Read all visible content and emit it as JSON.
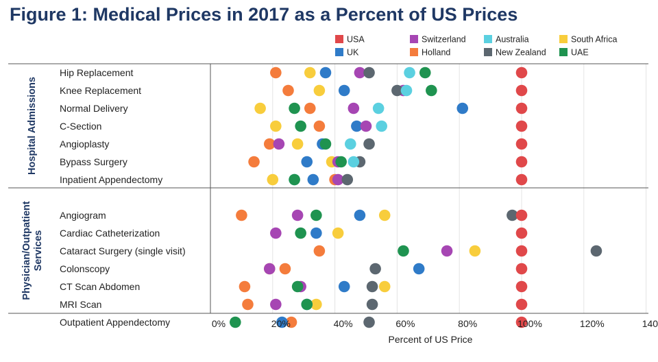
{
  "title": "Figure 1: Medical Prices in 2017 as a Percent of US Prices",
  "colors": {
    "USA": "#e0484a",
    "UK": "#2f7bc8",
    "Switzerland": "#a646b3",
    "Holland": "#f47c3c",
    "Australia": "#5bd0e0",
    "New Zealand": "#5c6770",
    "South Africa": "#f8cd3c",
    "UAE": "#1f9350",
    "title": "#1f3864"
  },
  "chart_data": {
    "type": "scatter",
    "title": "Figure 1: Medical Prices in 2017 as a Percent of US Prices",
    "xlabel": "Percent of US Price",
    "xlim": [
      0,
      140
    ],
    "x_ticks": [
      "0%",
      "20%",
      "40%",
      "60%",
      "80%",
      "100%",
      "120%",
      "140%"
    ],
    "grid": true,
    "legend_position": "top-right",
    "legend": [
      [
        "USA",
        "Switzerland",
        "Australia",
        "South Africa"
      ],
      [
        "UK",
        "Holland",
        "New Zealand",
        "UAE"
      ]
    ],
    "groups": [
      {
        "label": "Hospital Admissions",
        "rows": [
          {
            "name": "Hip Replacement",
            "USA": 100,
            "UK": 37,
            "Switzerland": 48,
            "Holland": 21,
            "Australia": 64,
            "New Zealand": 51,
            "South Africa": 32,
            "UAE": 69
          },
          {
            "name": "Knee Replacement",
            "USA": 100,
            "UK": 43,
            "Switzerland": 62,
            "Holland": 25,
            "Australia": 63,
            "New Zealand": 60,
            "South Africa": 35,
            "UAE": 71
          },
          {
            "name": "Normal Delivery",
            "USA": 100,
            "UK": 81,
            "Switzerland": 46,
            "Holland": 32,
            "Australia": 54,
            "New Zealand": null,
            "South Africa": 16,
            "UAE": 27
          },
          {
            "name": "C-Section",
            "USA": 100,
            "UK": 47,
            "Switzerland": 50,
            "Holland": 35,
            "Australia": 55,
            "New Zealand": null,
            "South Africa": 21,
            "UAE": 29
          },
          {
            "name": "Angioplasty",
            "USA": 100,
            "UK": 36,
            "Switzerland": 22,
            "Holland": 19,
            "Australia": 45,
            "New Zealand": 51,
            "South Africa": 28,
            "UAE": 37
          },
          {
            "name": "Bypass Surgery",
            "USA": 100,
            "UK": 31,
            "Switzerland": 41,
            "Holland": 14,
            "Australia": 46,
            "New Zealand": 48,
            "South Africa": 39,
            "UAE": 42
          },
          {
            "name": "Inpatient Appendectomy",
            "USA": 100,
            "UK": 33,
            "Switzerland": 41,
            "Holland": 40,
            "Australia": 27,
            "New Zealand": 44,
            "South Africa": 20,
            "UAE": 27
          }
        ]
      },
      {
        "label": "Physician/Outpatient Services",
        "rows": [
          {
            "name": "Angiogram",
            "USA": 100,
            "UK": 48,
            "Switzerland": 28,
            "Holland": 10,
            "Australia": null,
            "New Zealand": 97,
            "South Africa": 56,
            "UAE": 34
          },
          {
            "name": "Cardiac Catheterization",
            "USA": 100,
            "UK": 34,
            "Switzerland": 21,
            "Holland": null,
            "Australia": null,
            "New Zealand": null,
            "South Africa": 41,
            "UAE": 29
          },
          {
            "name": "Cataract Surgery (single visit)",
            "USA": 100,
            "UK": null,
            "Switzerland": 76,
            "Holland": 35,
            "Australia": null,
            "New Zealand": 124,
            "South Africa": 85,
            "UAE": 62
          },
          {
            "name": "Colonscopy",
            "USA": 100,
            "UK": 67,
            "Switzerland": 19,
            "Holland": 24,
            "Australia": null,
            "New Zealand": 53,
            "South Africa": 19,
            "UAE": null
          },
          {
            "name": "CT Scan Abdomen",
            "USA": 100,
            "UK": 43,
            "Switzerland": 29,
            "Holland": 11,
            "Australia": null,
            "New Zealand": 52,
            "South Africa": 56,
            "UAE": 28
          },
          {
            "name": "MRI Scan",
            "USA": 100,
            "UK": 31,
            "Switzerland": 21,
            "Holland": 12,
            "Australia": null,
            "New Zealand": 52,
            "South Africa": 34,
            "UAE": 31
          },
          {
            "name": "Outpatient Appendectomy",
            "USA": 100,
            "UK": 23,
            "Switzerland": null,
            "Holland": 26,
            "Australia": null,
            "New Zealand": 51,
            "South Africa": null,
            "UAE": 8
          }
        ]
      }
    ]
  }
}
